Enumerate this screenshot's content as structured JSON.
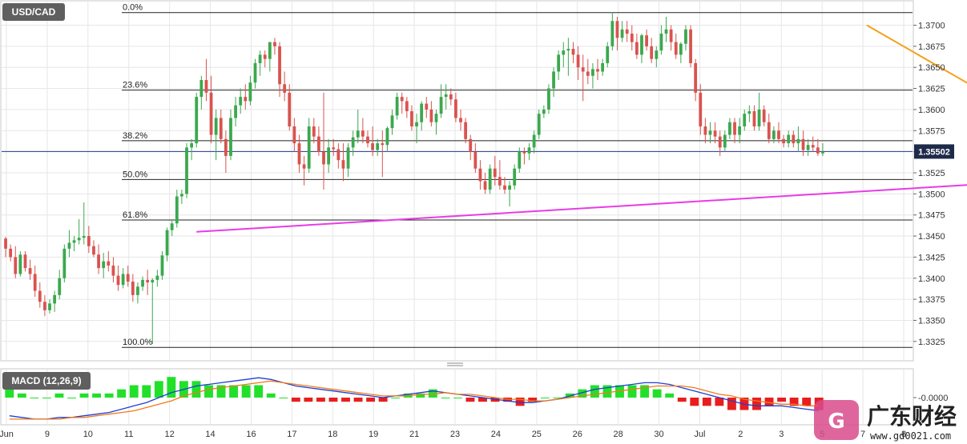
{
  "symbol_badge": "USD/CAD",
  "macd_badge": "MACD (12,26,9)",
  "price_badge": "1.35502",
  "watermark": {
    "text": "广东财经",
    "url": "www.gd0021.com"
  },
  "colors": {
    "up": "#3ba84e",
    "down": "#d9534f",
    "trend_resistance": "#f5a01a",
    "trend_support": "#e83be8",
    "macd_line": "#1f3fd6",
    "signal_line": "#f07a1a",
    "hist_pos": "#22e02a",
    "hist_neg": "#e81e1e",
    "grid": "#e6e6e6"
  },
  "chart_data": [
    {
      "type": "candlestick",
      "title": "USD/CAD",
      "ylim": [
        1.3303,
        1.3728
      ],
      "y_ticks": [
        "1.3325",
        "1.3350",
        "1.3375",
        "1.3400",
        "1.3425",
        "1.3450",
        "1.3475",
        "1.3500",
        "1.3525",
        "1.3550",
        "1.3575",
        "1.3600",
        "1.3625",
        "1.3650",
        "1.3675",
        "1.3700"
      ],
      "x_ticks": [
        "Jun",
        "9",
        "10",
        "11",
        "12",
        "14",
        "16",
        "17",
        "18",
        "19",
        "21",
        "23",
        "24",
        "25",
        "26",
        "28",
        "30",
        "Jul",
        "2",
        "3",
        "5",
        "7",
        "8"
      ],
      "last_price": 1.35502,
      "fib_levels": [
        {
          "label": "0.0%",
          "value": 1.3715
        },
        {
          "label": "23.6%",
          "value": 1.3623
        },
        {
          "label": "38.2%",
          "value": 1.3563
        },
        {
          "label": "50.0%",
          "value": 1.3517
        },
        {
          "label": "61.8%",
          "value": 1.3469
        },
        {
          "label": "100.0%",
          "value": 1.3318
        }
      ],
      "trendlines": [
        {
          "name": "resistance",
          "from": [
            176,
            1.37
          ],
          "to": [
            227,
            1.353
          ]
        },
        {
          "name": "support",
          "from": [
            39,
            1.3455
          ],
          "to": [
            229,
            1.3522
          ]
        }
      ],
      "candles": [
        [
          1.3447,
          1.3449,
          1.3425,
          1.3435
        ],
        [
          1.3435,
          1.344,
          1.342,
          1.3425
        ],
        [
          1.3425,
          1.3438,
          1.34,
          1.3405
        ],
        [
          1.3405,
          1.3432,
          1.3402,
          1.3428
        ],
        [
          1.3428,
          1.3432,
          1.3408,
          1.3412
        ],
        [
          1.3412,
          1.3422,
          1.3398,
          1.3405
        ],
        [
          1.3405,
          1.3415,
          1.3378,
          1.3385
        ],
        [
          1.3385,
          1.3395,
          1.3365,
          1.3372
        ],
        [
          1.3372,
          1.338,
          1.3355,
          1.3362
        ],
        [
          1.3362,
          1.3375,
          1.3358,
          1.337
        ],
        [
          1.337,
          1.3385,
          1.336,
          1.338
        ],
        [
          1.338,
          1.341,
          1.3375,
          1.34
        ],
        [
          1.34,
          1.344,
          1.3395,
          1.3435
        ],
        [
          1.3435,
          1.3457,
          1.3425,
          1.3442
        ],
        [
          1.3442,
          1.345,
          1.3432,
          1.3445
        ],
        [
          1.3445,
          1.347,
          1.344,
          1.3448
        ],
        [
          1.3448,
          1.349,
          1.344,
          1.345
        ],
        [
          1.345,
          1.3462,
          1.343,
          1.3438
        ],
        [
          1.3438,
          1.3445,
          1.3425,
          1.3428
        ],
        [
          1.3428,
          1.344,
          1.3405,
          1.3412
        ],
        [
          1.3412,
          1.343,
          1.34,
          1.342
        ],
        [
          1.342,
          1.3432,
          1.3408,
          1.3415
        ],
        [
          1.3415,
          1.3425,
          1.3395,
          1.3403
        ],
        [
          1.3403,
          1.3415,
          1.3385,
          1.3392
        ],
        [
          1.3392,
          1.3412,
          1.3388,
          1.3405
        ],
        [
          1.3405,
          1.3415,
          1.339,
          1.3396
        ],
        [
          1.3396,
          1.3405,
          1.3372,
          1.338
        ],
        [
          1.338,
          1.3395,
          1.337,
          1.339
        ],
        [
          1.339,
          1.3402,
          1.3385,
          1.3398
        ],
        [
          1.3398,
          1.341,
          1.338,
          1.3395
        ],
        [
          1.3395,
          1.34,
          1.3322,
          1.3398
        ],
        [
          1.3398,
          1.341,
          1.339,
          1.3403
        ],
        [
          1.3403,
          1.3432,
          1.3398,
          1.3427
        ],
        [
          1.3427,
          1.346,
          1.342,
          1.3457
        ],
        [
          1.3457,
          1.347,
          1.345,
          1.3465
        ],
        [
          1.3465,
          1.3505,
          1.346,
          1.3497
        ],
        [
          1.3497,
          1.3505,
          1.3488,
          1.35
        ],
        [
          1.35,
          1.356,
          1.3495,
          1.3555
        ],
        [
          1.3555,
          1.3565,
          1.354,
          1.356
        ],
        [
          1.356,
          1.362,
          1.3555,
          1.3615
        ],
        [
          1.3615,
          1.364,
          1.36,
          1.3635
        ],
        [
          1.3635,
          1.366,
          1.361,
          1.362
        ],
        [
          1.362,
          1.364,
          1.356,
          1.357
        ],
        [
          1.357,
          1.36,
          1.354,
          1.359
        ],
        [
          1.359,
          1.36,
          1.356,
          1.3565
        ],
        [
          1.3565,
          1.3575,
          1.3525,
          1.3545
        ],
        [
          1.3545,
          1.36,
          1.354,
          1.359
        ],
        [
          1.359,
          1.3615,
          1.358,
          1.3605
        ],
        [
          1.3605,
          1.3625,
          1.3595,
          1.3615
        ],
        [
          1.3615,
          1.363,
          1.36,
          1.361
        ],
        [
          1.361,
          1.364,
          1.3605,
          1.3632
        ],
        [
          1.3632,
          1.366,
          1.3625,
          1.3655
        ],
        [
          1.3655,
          1.367,
          1.364,
          1.3665
        ],
        [
          1.3665,
          1.367,
          1.365,
          1.366
        ],
        [
          1.366,
          1.368,
          1.3645,
          1.368
        ],
        [
          1.368,
          1.3685,
          1.3665,
          1.3675
        ],
        [
          1.3675,
          1.368,
          1.3615,
          1.363
        ],
        [
          1.363,
          1.3645,
          1.361,
          1.362
        ],
        [
          1.362,
          1.363,
          1.3575,
          1.358
        ],
        [
          1.358,
          1.359,
          1.355,
          1.356
        ],
        [
          1.356,
          1.357,
          1.3525,
          1.3535
        ],
        [
          1.3535,
          1.3545,
          1.351,
          1.353
        ],
        [
          1.353,
          1.359,
          1.3525,
          1.358
        ],
        [
          1.358,
          1.359,
          1.356,
          1.3568
        ],
        [
          1.3568,
          1.358,
          1.3545,
          1.355
        ],
        [
          1.355,
          1.362,
          1.3505,
          1.3535
        ],
        [
          1.3535,
          1.3565,
          1.3525,
          1.3555
        ],
        [
          1.3555,
          1.3565,
          1.3545,
          1.3553
        ],
        [
          1.3553,
          1.356,
          1.353,
          1.354
        ],
        [
          1.354,
          1.356,
          1.3515,
          1.353
        ],
        [
          1.353,
          1.356,
          1.352,
          1.3555
        ],
        [
          1.3555,
          1.3575,
          1.3545,
          1.3567
        ],
        [
          1.3567,
          1.36,
          1.356,
          1.3575
        ],
        [
          1.3575,
          1.359,
          1.356,
          1.3568
        ],
        [
          1.3568,
          1.3575,
          1.3555,
          1.356
        ],
        [
          1.356,
          1.358,
          1.3545,
          1.3552
        ],
        [
          1.3552,
          1.3565,
          1.3545,
          1.356
        ],
        [
          1.356,
          1.3575,
          1.352,
          1.3558
        ],
        [
          1.3558,
          1.358,
          1.355,
          1.3578
        ],
        [
          1.3578,
          1.36,
          1.357,
          1.3593
        ],
        [
          1.3593,
          1.362,
          1.3588,
          1.3615
        ],
        [
          1.3615,
          1.362,
          1.3595,
          1.361
        ],
        [
          1.361,
          1.3615,
          1.359,
          1.3598
        ],
        [
          1.3598,
          1.3605,
          1.3575,
          1.358
        ],
        [
          1.358,
          1.3595,
          1.356,
          1.3585
        ],
        [
          1.3585,
          1.361,
          1.3575,
          1.3607
        ],
        [
          1.3607,
          1.3615,
          1.359,
          1.36
        ],
        [
          1.36,
          1.361,
          1.358,
          1.3585
        ],
        [
          1.3585,
          1.36,
          1.357,
          1.3595
        ],
        [
          1.3595,
          1.363,
          1.359,
          1.3615
        ],
        [
          1.3615,
          1.363,
          1.36,
          1.3618
        ],
        [
          1.3618,
          1.3625,
          1.3605,
          1.3612
        ],
        [
          1.3612,
          1.362,
          1.3585,
          1.359
        ],
        [
          1.359,
          1.36,
          1.3575,
          1.3585
        ],
        [
          1.3585,
          1.359,
          1.356,
          1.3565
        ],
        [
          1.3565,
          1.357,
          1.354,
          1.355
        ],
        [
          1.355,
          1.356,
          1.3525,
          1.353
        ],
        [
          1.353,
          1.354,
          1.3505,
          1.3515
        ],
        [
          1.3515,
          1.3525,
          1.35,
          1.3505
        ],
        [
          1.3505,
          1.3535,
          1.35,
          1.353
        ],
        [
          1.353,
          1.3545,
          1.351,
          1.352
        ],
        [
          1.352,
          1.354,
          1.3505,
          1.351
        ],
        [
          1.351,
          1.352,
          1.35,
          1.3505
        ],
        [
          1.3505,
          1.3515,
          1.3485,
          1.351
        ],
        [
          1.351,
          1.3535,
          1.3505,
          1.353
        ],
        [
          1.353,
          1.3555,
          1.3525,
          1.355
        ],
        [
          1.355,
          1.3555,
          1.3535,
          1.3548
        ],
        [
          1.3548,
          1.356,
          1.354,
          1.3555
        ],
        [
          1.3555,
          1.3575,
          1.3548,
          1.357
        ],
        [
          1.357,
          1.36,
          1.3565,
          1.3595
        ],
        [
          1.3595,
          1.3605,
          1.359,
          1.36
        ],
        [
          1.36,
          1.363,
          1.3595,
          1.3625
        ],
        [
          1.3625,
          1.365,
          1.3615,
          1.3645
        ],
        [
          1.3645,
          1.367,
          1.3635,
          1.3665
        ],
        [
          1.3665,
          1.368,
          1.365,
          1.367
        ],
        [
          1.367,
          1.3685,
          1.364,
          1.3672
        ],
        [
          1.3672,
          1.368,
          1.3655,
          1.3665
        ],
        [
          1.3665,
          1.3675,
          1.3635,
          1.365
        ],
        [
          1.365,
          1.3665,
          1.361,
          1.3645
        ],
        [
          1.3645,
          1.366,
          1.363,
          1.364
        ],
        [
          1.364,
          1.3655,
          1.3625,
          1.3648
        ],
        [
          1.3648,
          1.366,
          1.3635,
          1.3645
        ],
        [
          1.3645,
          1.366,
          1.364,
          1.3655
        ],
        [
          1.3655,
          1.368,
          1.365,
          1.3675
        ],
        [
          1.3675,
          1.3715,
          1.367,
          1.3705
        ],
        [
          1.3705,
          1.371,
          1.367,
          1.3685
        ],
        [
          1.3685,
          1.3705,
          1.368,
          1.3695
        ],
        [
          1.3695,
          1.3705,
          1.368,
          1.369
        ],
        [
          1.369,
          1.37,
          1.367,
          1.368
        ],
        [
          1.368,
          1.369,
          1.366,
          1.3665
        ],
        [
          1.3665,
          1.369,
          1.3655,
          1.3688
        ],
        [
          1.3688,
          1.3695,
          1.367,
          1.3675
        ],
        [
          1.3675,
          1.3685,
          1.3655,
          1.366
        ],
        [
          1.366,
          1.3675,
          1.365,
          1.367
        ],
        [
          1.367,
          1.37,
          1.3665,
          1.369
        ],
        [
          1.369,
          1.371,
          1.368,
          1.3695
        ],
        [
          1.3695,
          1.37,
          1.367,
          1.368
        ],
        [
          1.368,
          1.369,
          1.366,
          1.3665
        ],
        [
          1.3665,
          1.368,
          1.3655,
          1.3678
        ],
        [
          1.3678,
          1.37,
          1.367,
          1.3695
        ],
        [
          1.3695,
          1.37,
          1.365,
          1.3655
        ],
        [
          1.3655,
          1.366,
          1.361,
          1.362
        ],
        [
          1.362,
          1.363,
          1.357,
          1.358
        ],
        [
          1.358,
          1.359,
          1.356,
          1.357
        ],
        [
          1.357,
          1.3585,
          1.356,
          1.3575
        ],
        [
          1.3575,
          1.3585,
          1.356,
          1.3568
        ],
        [
          1.3568,
          1.3575,
          1.3545,
          1.3555
        ],
        [
          1.3555,
          1.3575,
          1.355,
          1.357
        ],
        [
          1.357,
          1.359,
          1.3565,
          1.3585
        ],
        [
          1.3585,
          1.359,
          1.356,
          1.357
        ],
        [
          1.357,
          1.359,
          1.356,
          1.358
        ],
        [
          1.358,
          1.36,
          1.3575,
          1.3595
        ],
        [
          1.3595,
          1.3605,
          1.3585,
          1.3598
        ],
        [
          1.3598,
          1.3605,
          1.3575,
          1.358
        ],
        [
          1.358,
          1.362,
          1.3575,
          1.36
        ],
        [
          1.36,
          1.3605,
          1.358,
          1.3585
        ],
        [
          1.3585,
          1.3595,
          1.356,
          1.3565
        ],
        [
          1.3565,
          1.358,
          1.356,
          1.3575
        ],
        [
          1.3575,
          1.3585,
          1.356,
          1.3565
        ],
        [
          1.3565,
          1.357,
          1.3555,
          1.356
        ],
        [
          1.356,
          1.3575,
          1.3555,
          1.357
        ],
        [
          1.357,
          1.3575,
          1.3555,
          1.356
        ],
        [
          1.356,
          1.358,
          1.355,
          1.3565
        ],
        [
          1.3565,
          1.3575,
          1.3545,
          1.3552
        ],
        [
          1.3552,
          1.3565,
          1.3545,
          1.3558
        ],
        [
          1.3558,
          1.3568,
          1.355,
          1.3555
        ],
        [
          1.3555,
          1.3565,
          1.3545,
          1.3548
        ],
        [
          1.3548,
          1.356,
          1.3545,
          1.355
        ]
      ]
    },
    {
      "type": "macd",
      "title": "MACD (12,26,9)",
      "y_ticks": [
        "0.0000"
      ],
      "macd": [
        -0.0011,
        -0.0012,
        -0.0013,
        -0.0013,
        -0.0012,
        -0.0012,
        -0.0011,
        -0.001,
        -0.0009,
        -0.0007,
        -0.0005,
        -0.0003,
        0.0,
        0.0003,
        0.0005,
        0.0007,
        0.0008,
        0.0009,
        0.001,
        0.0011,
        0.0012,
        0.0011,
        0.0009,
        0.0007,
        0.0006,
        0.0005,
        0.0004,
        0.0003,
        0.0002,
        0.0001,
        0.0,
        0.0001,
        0.0002,
        0.0003,
        0.0004,
        0.0003,
        0.0002,
        0.0001,
        0.0,
        -0.0001,
        -0.0002,
        -0.0003,
        -0.0003,
        -0.0002,
        -0.0001,
        0.0001,
        0.0003,
        0.0005,
        0.0006,
        0.0007,
        0.0008,
        0.0009,
        0.0009,
        0.0008,
        0.0006,
        0.0004,
        0.0002,
        0.0,
        -0.0002,
        -0.0004,
        -0.0005,
        -0.0005,
        -0.0005,
        -0.0006,
        -0.0007,
        -0.0008
      ],
      "signal": [
        -0.0013,
        -0.0013,
        -0.0013,
        -0.0013,
        -0.0013,
        -0.0012,
        -0.0012,
        -0.0011,
        -0.001,
        -0.0009,
        -0.0008,
        -0.0006,
        -0.0004,
        -0.0002,
        0.0001,
        0.0003,
        0.0005,
        0.0006,
        0.0007,
        0.0008,
        0.0009,
        0.001,
        0.0009,
        0.0008,
        0.0007,
        0.0006,
        0.0005,
        0.0004,
        0.0003,
        0.0002,
        0.0001,
        0.0001,
        0.0001,
        0.0002,
        0.0002,
        0.0003,
        0.0002,
        0.0002,
        0.0001,
        0.0,
        -0.0001,
        -0.0001,
        -0.0002,
        -0.0002,
        -0.0001,
        0.0,
        0.0001,
        0.0002,
        0.0003,
        0.0004,
        0.0005,
        0.0006,
        0.0007,
        0.0007,
        0.0007,
        0.0006,
        0.0004,
        0.0002,
        0.0001,
        -0.0001,
        -0.0002,
        -0.0003,
        -0.0004,
        -0.0004,
        -0.0005,
        -0.0005
      ],
      "ylim": [
        -0.0015,
        0.0015
      ]
    }
  ]
}
